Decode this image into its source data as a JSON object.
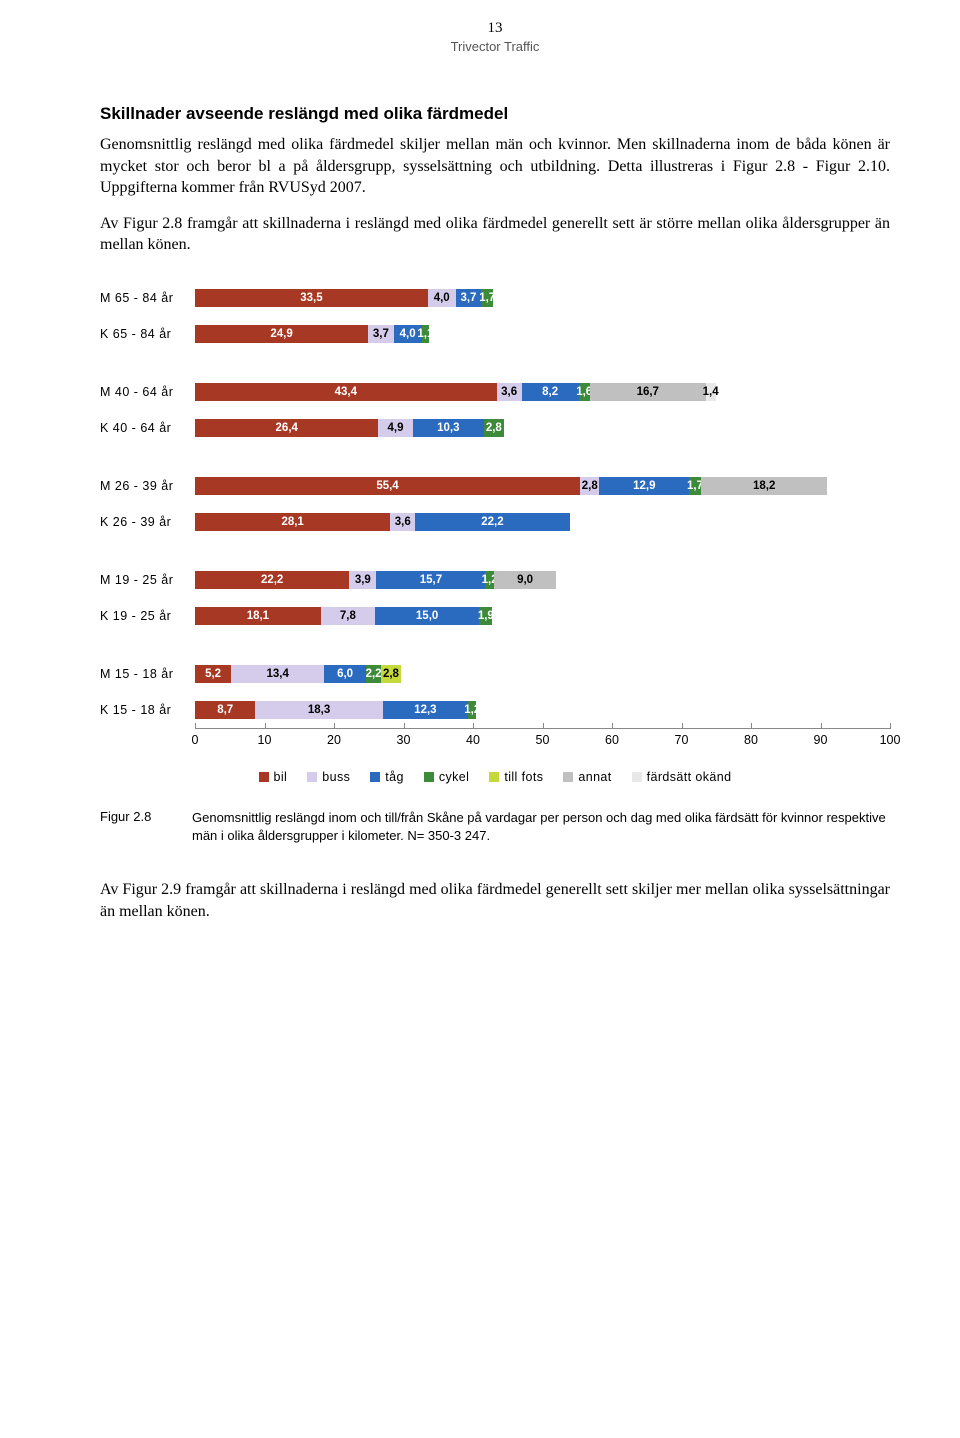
{
  "page": {
    "number": "13",
    "subtitle": "Trivector Traffic"
  },
  "section": {
    "heading": "Skillnader avseende reslängd med olika färdmedel",
    "para1": "Genomsnittlig reslängd med olika färdmedel skiljer mellan män och kvinnor. Men skillnaderna inom de båda könen är mycket stor och beror bl a på åldersgrupp, sysselsättning och utbildning. Detta illustreras i Figur 2.8 - Figur 2.10. Uppgifterna kommer från RVUSyd 2007.",
    "para2": "Av Figur 2.8 framgår att skillnaderna i reslängd med olika färdmedel generellt sett är större mellan olika åldersgrupper än mellan könen."
  },
  "chart": {
    "type": "stacked-bar-horizontal",
    "x_max": 100,
    "ticks": [
      0,
      10,
      20,
      30,
      40,
      50,
      60,
      70,
      80,
      90,
      100
    ],
    "colors": {
      "bil": "#a73924",
      "buss": "#d4ccea",
      "tag": "#2a6bc0",
      "cykel": "#3d8a3a",
      "fots": "#c6d93a",
      "annat": "#c0c0c0",
      "okand": "#e8e8e8"
    },
    "legend": [
      {
        "key": "bil",
        "label": "bil"
      },
      {
        "key": "buss",
        "label": "buss"
      },
      {
        "key": "tag",
        "label": "tåg"
      },
      {
        "key": "cykel",
        "label": "cykel"
      },
      {
        "key": "fots",
        "label": "till fots"
      },
      {
        "key": "annat",
        "label": "annat"
      },
      {
        "key": "okand",
        "label": "färdsätt okänd"
      }
    ],
    "groups": [
      [
        {
          "label": "M 65 - 84 år",
          "segments": [
            {
              "k": "bil",
              "v": 33.5,
              "t": "33,5"
            },
            {
              "k": "buss",
              "v": 4.0,
              "t": "4,0"
            },
            {
              "k": "tag",
              "v": 3.7,
              "t": "3,7"
            },
            {
              "k": "cykel",
              "v": 1.7,
              "t": "1,7"
            }
          ]
        },
        {
          "label": "K 65 - 84 år",
          "segments": [
            {
              "k": "bil",
              "v": 24.9,
              "t": "24,9"
            },
            {
              "k": "buss",
              "v": 3.7,
              "t": "3,7"
            },
            {
              "k": "tag",
              "v": 4.0,
              "t": "4,0"
            },
            {
              "k": "cykel",
              "v": 1.1,
              "t": "1,1"
            }
          ]
        }
      ],
      [
        {
          "label": "M 40 - 64 år",
          "segments": [
            {
              "k": "bil",
              "v": 43.4,
              "t": "43,4"
            },
            {
              "k": "buss",
              "v": 3.6,
              "t": "3,6"
            },
            {
              "k": "tag",
              "v": 8.2,
              "t": "8,2"
            },
            {
              "k": "cykel",
              "v": 1.6,
              "t": "1,6"
            },
            {
              "k": "annat",
              "v": 16.7,
              "t": "16,7"
            },
            {
              "k": "okand",
              "v": 1.4,
              "t": "1,4"
            }
          ]
        },
        {
          "label": "K 40 - 64 år",
          "segments": [
            {
              "k": "bil",
              "v": 26.4,
              "t": "26,4"
            },
            {
              "k": "buss",
              "v": 4.9,
              "t": "4,9"
            },
            {
              "k": "tag",
              "v": 10.3,
              "t": "10,3"
            },
            {
              "k": "cykel",
              "v": 2.8,
              "t": "2,8"
            }
          ]
        }
      ],
      [
        {
          "label": "M 26 - 39 år",
          "segments": [
            {
              "k": "bil",
              "v": 55.4,
              "t": "55,4"
            },
            {
              "k": "buss",
              "v": 2.8,
              "t": "2,8"
            },
            {
              "k": "tag",
              "v": 12.9,
              "t": "12,9"
            },
            {
              "k": "cykel",
              "v": 1.7,
              "t": "1,7"
            },
            {
              "k": "annat",
              "v": 18.2,
              "t": "18,2"
            }
          ]
        },
        {
          "label": "K 26 - 39 år",
          "segments": [
            {
              "k": "bil",
              "v": 28.1,
              "t": "28,1"
            },
            {
              "k": "buss",
              "v": 3.6,
              "t": "3,6"
            },
            {
              "k": "tag",
              "v": 22.2,
              "t": "22,2"
            }
          ]
        }
      ],
      [
        {
          "label": "M 19 - 25 år",
          "segments": [
            {
              "k": "bil",
              "v": 22.2,
              "t": "22,2"
            },
            {
              "k": "buss",
              "v": 3.9,
              "t": "3,9"
            },
            {
              "k": "tag",
              "v": 15.7,
              "t": "15,7"
            },
            {
              "k": "cykel",
              "v": 1.2,
              "t": "1,2"
            },
            {
              "k": "annat",
              "v": 9.0,
              "t": "9,0"
            }
          ]
        },
        {
          "label": "K 19 - 25 år",
          "segments": [
            {
              "k": "bil",
              "v": 18.1,
              "t": "18,1"
            },
            {
              "k": "buss",
              "v": 7.8,
              "t": "7,8"
            },
            {
              "k": "tag",
              "v": 15.0,
              "t": "15,0"
            },
            {
              "k": "cykel",
              "v": 1.9,
              "t": "1,9"
            }
          ]
        }
      ],
      [
        {
          "label": "M 15 - 18 år",
          "segments": [
            {
              "k": "bil",
              "v": 5.2,
              "t": "5,2"
            },
            {
              "k": "buss",
              "v": 13.4,
              "t": "13,4"
            },
            {
              "k": "tag",
              "v": 6.0,
              "t": "6,0"
            },
            {
              "k": "cykel",
              "v": 2.2,
              "t": "2,2"
            },
            {
              "k": "fots",
              "v": 2.8,
              "t": "2,8"
            }
          ]
        },
        {
          "label": "K 15 - 18 år",
          "segments": [
            {
              "k": "bil",
              "v": 8.7,
              "t": "8,7"
            },
            {
              "k": "buss",
              "v": 18.3,
              "t": "18,3"
            },
            {
              "k": "tag",
              "v": 12.3,
              "t": "12,3"
            },
            {
              "k": "cykel",
              "v": 1.2,
              "t": "1,2"
            }
          ]
        }
      ]
    ]
  },
  "caption": {
    "figlabel": "Figur 2.8",
    "figtext": "Genomsnittlig reslängd inom och till/från Skåne på vardagar per person och dag med olika färdsätt för kvinnor respektive män i olika åldersgrupper i kilometer. N= 350-3 247."
  },
  "closing": "Av Figur 2.9 framgår att skillnaderna i reslängd med olika färdmedel generellt sett skiljer mer mellan olika sysselsättningar än mellan könen."
}
